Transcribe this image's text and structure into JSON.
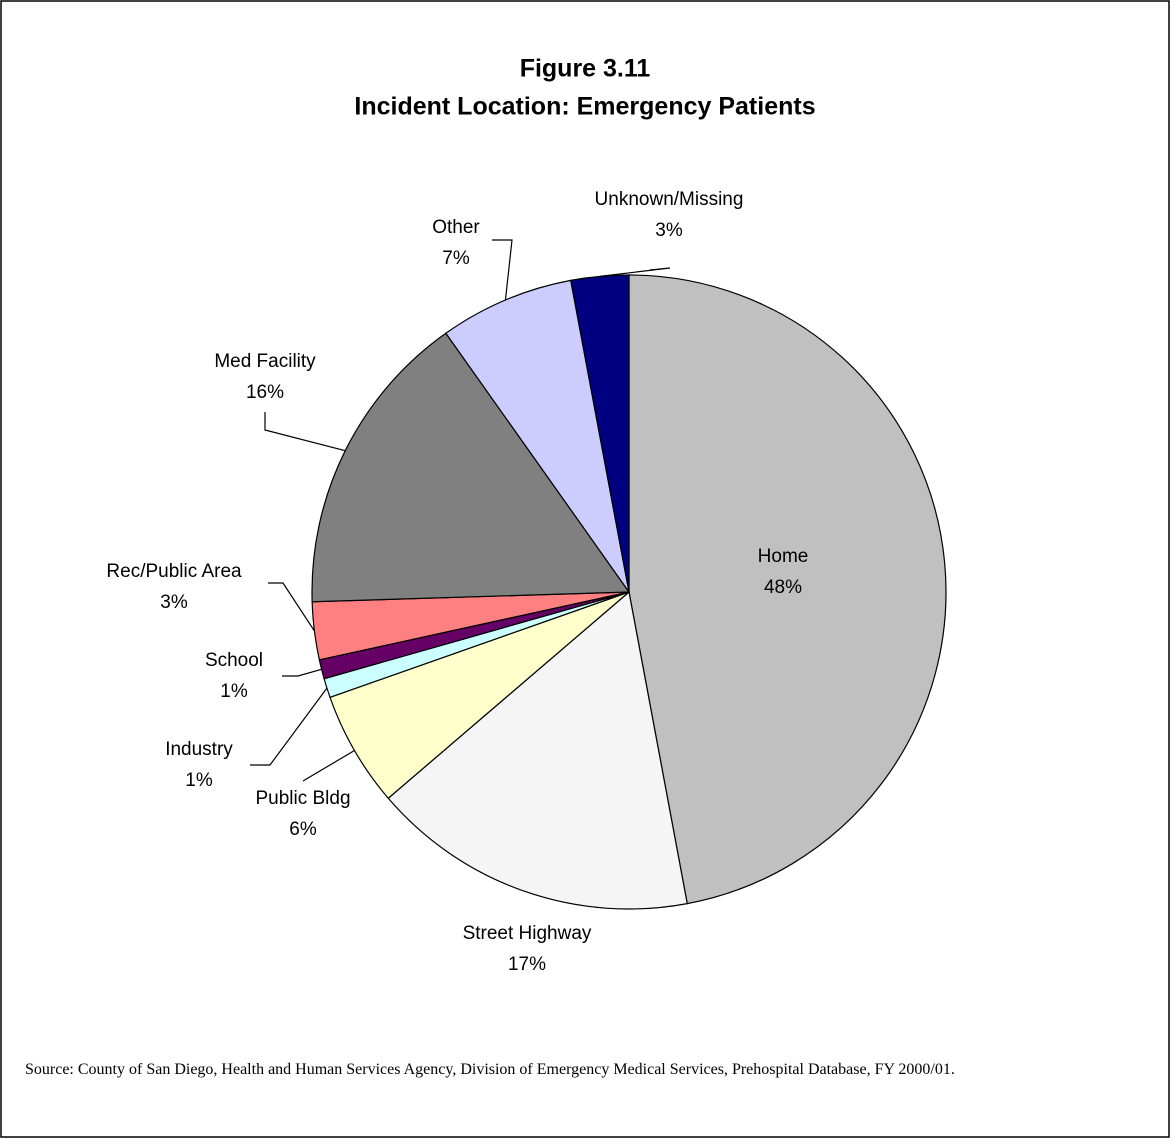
{
  "chart_data": {
    "type": "pie",
    "title": "Figure 3.11",
    "subtitle": "Incident Location: Emergency Patients",
    "categories": [
      "Home",
      "Street Highway",
      "Public Bldg",
      "Industry",
      "School",
      "Rec/Public Area",
      "Med Facility",
      "Other",
      "Unknown/Missing"
    ],
    "values": [
      48,
      17,
      6,
      1,
      1,
      3,
      16,
      7,
      3
    ],
    "value_labels": [
      "48%",
      "17%",
      "6%",
      "1%",
      "1%",
      "3%",
      "16%",
      "7%",
      "3%"
    ],
    "colors": [
      "#c0c0c0",
      "#f5f5f5",
      "#ffffcc",
      "#ccffff",
      "#660066",
      "#ff8080",
      "#808080",
      "#ccccff",
      "#000080"
    ],
    "source": "Source: County of San Diego, Health and Human Services Agency, Division of Emergency Medical Services, Prehospital Database, FY 2000/01."
  }
}
